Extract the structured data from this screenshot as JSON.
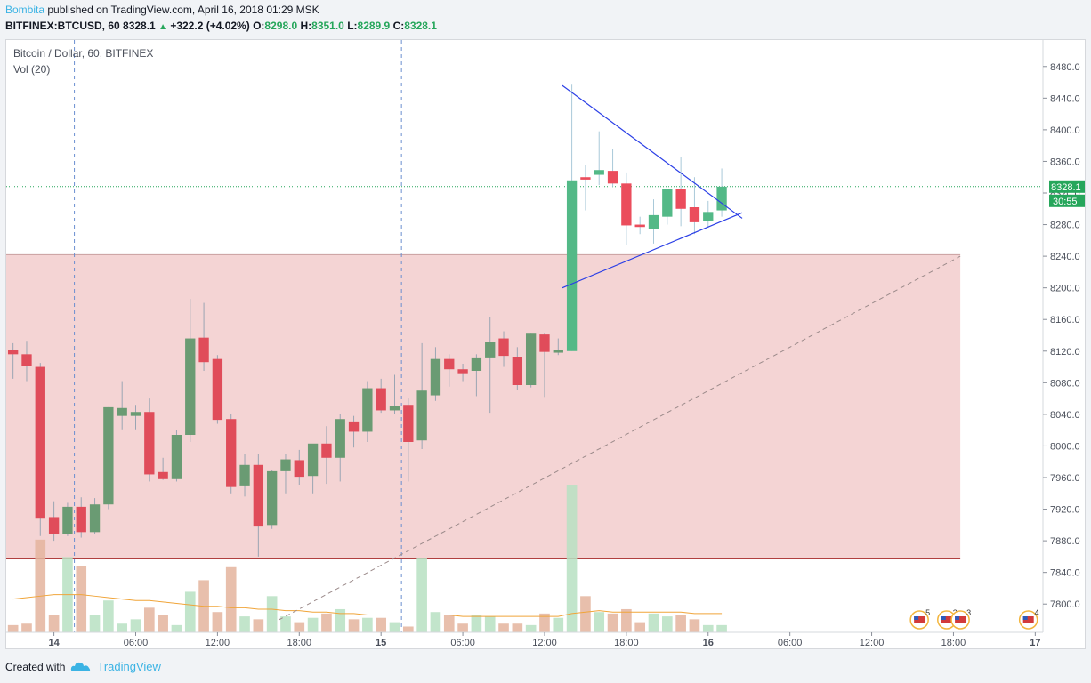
{
  "header": {
    "author": "Bombita",
    "published_text": "published on TradingView.com, April 16, 2018 01:29 MSK",
    "symbol": "BITFINEX:BTCUSD, 60",
    "last": "8328.1",
    "arrow": "▲",
    "change": "+322.2 (+4.02%)",
    "o_label": "O:",
    "o_val": "8298.0",
    "h_label": "H:",
    "h_val": "8351.0",
    "l_label": "L:",
    "l_val": "8289.9",
    "c_label": "C:",
    "c_val": "8328.1"
  },
  "legend": {
    "series": "Bitcoin / Dollar, 60, BITFINEX",
    "volume": "Vol (20)"
  },
  "footer": {
    "created": "Created with",
    "brand": "TradingView"
  },
  "colors": {
    "up": "#6a9b73",
    "down": "#e04c5a",
    "lastUp": "#53b987",
    "lastDown": "#eb4d5c",
    "volUp": "#b7e1c2",
    "volDown": "#e4b49d",
    "zoneRed": "#f4d4d4",
    "zoneGreen": "#eaf5d5",
    "triangle": "#2b3fe6",
    "priceLine": "#26a65b",
    "maLine": "#f0a53a"
  },
  "chart_data": {
    "type": "candlestick",
    "title": "Bitcoin / Dollar, 60, BITFINEX",
    "ylim": [
      7780,
      8500
    ],
    "y_ticks": [
      "8480.0",
      "8440.0",
      "8400.0",
      "8360.0",
      "8320.0",
      "8280.0",
      "8240.0",
      "8200.0",
      "8160.0",
      "8120.0",
      "8080.0",
      "8040.0",
      "8000.0",
      "7960.0",
      "7920.0",
      "7880.0",
      "7840.0",
      "7800.0"
    ],
    "x_ticks": [
      {
        "label": "14",
        "bar": 3
      },
      {
        "label": "06:00",
        "bar": 9
      },
      {
        "label": "12:00",
        "bar": 15
      },
      {
        "label": "18:00",
        "bar": 21
      },
      {
        "label": "15",
        "bar": 27
      },
      {
        "label": "06:00",
        "bar": 33
      },
      {
        "label": "12:00",
        "bar": 39
      },
      {
        "label": "18:00",
        "bar": 45
      },
      {
        "label": "16",
        "bar": 51
      },
      {
        "label": "06:00",
        "bar": 57
      },
      {
        "label": "12:00",
        "bar": 63
      },
      {
        "label": "18:00",
        "bar": 69
      },
      {
        "label": "17",
        "bar": 75
      }
    ],
    "bar_range": [
      -0.5,
      75.5
    ],
    "last_price_label": "8328.1",
    "countdown_label": "30:55",
    "last_price": 8328.1,
    "candles": [
      {
        "o": 8122,
        "h": 8130,
        "l": 8085,
        "c": 8116
      },
      {
        "o": 8116,
        "h": 8133,
        "l": 8082,
        "c": 8101
      },
      {
        "o": 8100,
        "h": 8105,
        "l": 7886,
        "c": 7908
      },
      {
        "o": 7910,
        "h": 7930,
        "l": 7880,
        "c": 7889
      },
      {
        "o": 7889,
        "h": 7928,
        "l": 7886,
        "c": 7923
      },
      {
        "o": 7923,
        "h": 7935,
        "l": 7884,
        "c": 7891
      },
      {
        "o": 7891,
        "h": 7934,
        "l": 7888,
        "c": 7926
      },
      {
        "o": 7926,
        "h": 8049,
        "l": 7920,
        "c": 8049
      },
      {
        "o": 8038,
        "h": 8082,
        "l": 8021,
        "c": 8048
      },
      {
        "o": 8038,
        "h": 8052,
        "l": 8021,
        "c": 8043
      },
      {
        "o": 8043,
        "h": 8060,
        "l": 7955,
        "c": 7964
      },
      {
        "o": 7967,
        "h": 7985,
        "l": 7957,
        "c": 7958
      },
      {
        "o": 7958,
        "h": 8020,
        "l": 7955,
        "c": 8014
      },
      {
        "o": 8014,
        "h": 8186,
        "l": 8005,
        "c": 8136
      },
      {
        "o": 8137,
        "h": 8181,
        "l": 8095,
        "c": 8106
      },
      {
        "o": 8110,
        "h": 8115,
        "l": 8028,
        "c": 8033
      },
      {
        "o": 8034,
        "h": 8040,
        "l": 7940,
        "c": 7948
      },
      {
        "o": 7950,
        "h": 7990,
        "l": 7936,
        "c": 7976
      },
      {
        "o": 7976,
        "h": 7990,
        "l": 7860,
        "c": 7898
      },
      {
        "o": 7900,
        "h": 7970,
        "l": 7895,
        "c": 7968
      },
      {
        "o": 7968,
        "h": 7990,
        "l": 7940,
        "c": 7983
      },
      {
        "o": 7982,
        "h": 7995,
        "l": 7951,
        "c": 7961
      },
      {
        "o": 7962,
        "h": 8000,
        "l": 7940,
        "c": 8003
      },
      {
        "o": 8003,
        "h": 8025,
        "l": 7952,
        "c": 7985
      },
      {
        "o": 7985,
        "h": 8040,
        "l": 7955,
        "c": 8034
      },
      {
        "o": 8031,
        "h": 8038,
        "l": 7998,
        "c": 8018
      },
      {
        "o": 8018,
        "h": 8082,
        "l": 8005,
        "c": 8073
      },
      {
        "o": 8073,
        "h": 8085,
        "l": 8042,
        "c": 8045
      },
      {
        "o": 8045,
        "h": 8090,
        "l": 8040,
        "c": 8050
      },
      {
        "o": 8052,
        "h": 8060,
        "l": 7955,
        "c": 8005
      },
      {
        "o": 8007,
        "h": 8130,
        "l": 7996,
        "c": 8070
      },
      {
        "o": 8064,
        "h": 8125,
        "l": 8057,
        "c": 8110
      },
      {
        "o": 8110,
        "h": 8116,
        "l": 8075,
        "c": 8097
      },
      {
        "o": 8097,
        "h": 8104,
        "l": 8082,
        "c": 8092
      },
      {
        "o": 8095,
        "h": 8116,
        "l": 8063,
        "c": 8112
      },
      {
        "o": 8112,
        "h": 8163,
        "l": 8042,
        "c": 8132
      },
      {
        "o": 8136,
        "h": 8145,
        "l": 8100,
        "c": 8114
      },
      {
        "o": 8113,
        "h": 8125,
        "l": 8071,
        "c": 8077
      },
      {
        "o": 8077,
        "h": 8142,
        "l": 8074,
        "c": 8142
      },
      {
        "o": 8141,
        "h": 8143,
        "l": 8062,
        "c": 8119
      },
      {
        "o": 8118,
        "h": 8136,
        "l": 8115,
        "c": 8122
      },
      {
        "o": 8120,
        "h": 8457,
        "l": 8120,
        "c": 8336
      },
      {
        "o": 8340,
        "h": 8355,
        "l": 8298,
        "c": 8337
      },
      {
        "o": 8343,
        "h": 8398,
        "l": 8330,
        "c": 8349
      },
      {
        "o": 8348,
        "h": 8376,
        "l": 8328,
        "c": 8332
      },
      {
        "o": 8332,
        "h": 8346,
        "l": 8254,
        "c": 8279
      },
      {
        "o": 8280,
        "h": 8290,
        "l": 8268,
        "c": 8277
      },
      {
        "o": 8275,
        "h": 8312,
        "l": 8256,
        "c": 8292
      },
      {
        "o": 8290,
        "h": 8322,
        "l": 8280,
        "c": 8325
      },
      {
        "o": 8325,
        "h": 8365,
        "l": 8278,
        "c": 8300
      },
      {
        "o": 8302,
        "h": 8340,
        "l": 8268,
        "c": 8283
      },
      {
        "o": 8284,
        "h": 8310,
        "l": 8276,
        "c": 8296
      },
      {
        "o": 8298,
        "h": 8351,
        "l": 8290,
        "c": 8328
      }
    ],
    "volume": {
      "max": 100,
      "ma": [
        23,
        24,
        25,
        26,
        26,
        26,
        25,
        24,
        23,
        22,
        22,
        21,
        20,
        19,
        18,
        18,
        17,
        17,
        16,
        16,
        15,
        15,
        14,
        14,
        13,
        13,
        12,
        12,
        12,
        12,
        12,
        12,
        12,
        11,
        11,
        11,
        11,
        11,
        11,
        11,
        11,
        13,
        14,
        15,
        14,
        14,
        14,
        14,
        14,
        14,
        13,
        13,
        13
      ],
      "values": [
        5,
        6,
        64,
        12,
        52,
        46,
        12,
        22,
        6,
        9,
        17,
        12,
        5,
        28,
        36,
        14,
        45,
        11,
        9,
        25,
        11,
        7,
        10,
        13,
        16,
        9,
        10,
        10,
        7,
        4,
        51,
        14,
        12,
        6,
        12,
        11,
        6,
        6,
        5,
        13,
        10,
        102,
        25,
        14,
        13,
        16,
        7,
        13,
        11,
        12,
        9,
        5,
        5
      ]
    },
    "zones": {
      "red": {
        "y1": 7857,
        "y2": 8242
      },
      "green": {
        "y1": 7780,
        "y2": 7857
      },
      "x_end_bar": 69.5
    },
    "vlines_bars": [
      4.5,
      28.5
    ],
    "triangle": {
      "upper": [
        [
          40.3,
          8456
        ],
        [
          53.5,
          8288
        ]
      ],
      "lower": [
        [
          40.3,
          8200
        ],
        [
          53.5,
          8295
        ]
      ]
    },
    "diagonal": [
      [
        19.5,
        7780
      ],
      [
        69.5,
        8240
      ]
    ],
    "events": [
      {
        "label": "5",
        "bar": 66.5
      },
      {
        "label": "3",
        "bar": 68.5
      },
      {
        "label": "3",
        "bar": 69.5
      },
      {
        "label": "4",
        "bar": 74.5
      }
    ]
  }
}
